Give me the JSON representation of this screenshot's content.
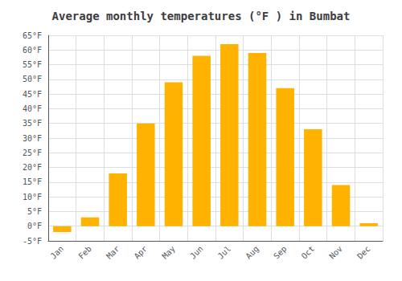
{
  "chart_data": {
    "type": "bar",
    "title": "Average monthly temperatures (°F ) in Bumbat",
    "categories": [
      "Jan",
      "Feb",
      "Mar",
      "Apr",
      "May",
      "Jun",
      "Jul",
      "Aug",
      "Sep",
      "Oct",
      "Nov",
      "Dec"
    ],
    "values": [
      -2,
      3,
      18,
      35,
      49,
      58,
      62,
      59,
      47,
      33,
      14,
      1
    ],
    "color": "#FFB300",
    "ylim": [
      -5,
      65
    ],
    "yticks": [
      {
        "value": -5,
        "label": "-5°F"
      },
      {
        "value": 0,
        "label": "0°F"
      },
      {
        "value": 5,
        "label": "5°F"
      },
      {
        "value": 10,
        "label": "10°F"
      },
      {
        "value": 15,
        "label": "15°F"
      },
      {
        "value": 20,
        "label": "20°F"
      },
      {
        "value": 25,
        "label": "25°F"
      },
      {
        "value": 30,
        "label": "30°F"
      },
      {
        "value": 35,
        "label": "35°F"
      },
      {
        "value": 40,
        "label": "40°F"
      },
      {
        "value": 45,
        "label": "45°F"
      },
      {
        "value": 50,
        "label": "50°F"
      },
      {
        "value": 55,
        "label": "55°F"
      },
      {
        "value": 60,
        "label": "60°F"
      },
      {
        "value": 65,
        "label": "65°F"
      }
    ],
    "grid": true
  }
}
